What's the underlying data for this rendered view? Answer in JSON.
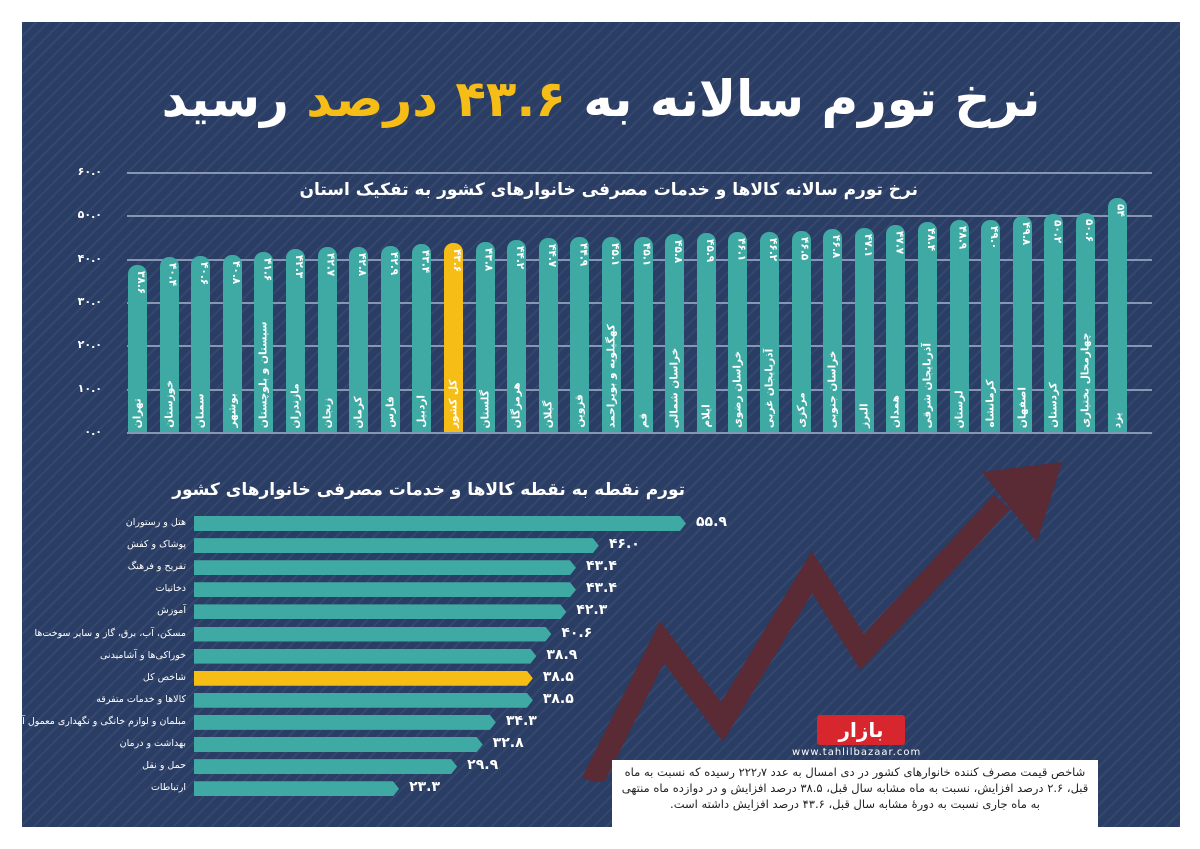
{
  "title": {
    "part1": "نرخ تورم سالانه به",
    "highlight": "۴۳.۶ درصد",
    "part2": "رسید"
  },
  "chart_data": [
    {
      "type": "bar",
      "title": "نرخ تورم سالانه کالاها و خدمات مصرفی خانوارهای کشور به تفکیک استان",
      "ylim": [
        0,
        60
      ],
      "yticks": [
        "۰.۰",
        "۱۰.۰",
        "۲۰.۰",
        "۳۰.۰",
        "۴۰.۰",
        "۵۰.۰",
        "۶۰.۰"
      ],
      "highlight": "کل کشور",
      "categories": [
        "تهران",
        "خوزستان",
        "سمنان",
        "بوشهر",
        "سیستان و بلوچستان",
        "مازندران",
        "زنجان",
        "کرمان",
        "فارس",
        "اردبیل",
        "کل کشور",
        "گلستان",
        "هرمزگان",
        "گیلان",
        "قزوین",
        "کهگیلویه و بویراحمد",
        "قم",
        "خراسان شمالی",
        "ایلام",
        "خراسان رضوی",
        "آذربایجان غربی",
        "مرکزی",
        "خراسان جنوبی",
        "البرز",
        "همدان",
        "آذربایجان شرقی",
        "لرستان",
        "کرمانشاه",
        "اصفهان",
        "کردستان",
        "چهارمحال بختیاری",
        "یزد"
      ],
      "values": [
        38.6,
        40.4,
        40.6,
        40.8,
        41.6,
        42.3,
        42.7,
        42.8,
        42.9,
        43.4,
        43.6,
        43.8,
        44.2,
        44.7,
        44.9,
        45.1,
        45.1,
        45.8,
        45.9,
        46.1,
        46.2,
        46.5,
        46.8,
        47.1,
        47.7,
        48.4,
        48.9,
        49.0,
        49.8,
        50.2,
        50.6,
        54
      ]
    },
    {
      "type": "bar",
      "orientation": "horizontal",
      "title": "تورم نقطه به نقطه کالاها و خدمات مصرفی خانوارهای کشور",
      "highlight": "شاخص کل",
      "categories": [
        "هتل و رستوران",
        "پوشاک و کفش",
        "تفریح و فرهنگ",
        "دخانیات",
        "آموزش",
        "مسکن، آب، برق، گاز و سایر سوخت‌ها",
        "خوراکی‌ها و آشامیدنی",
        "شاخص کل",
        "کالاها و خدمات متفرقه",
        "مبلمان و لوازم خانگی و نگهداری معمول آنها",
        "بهداشت و درمان",
        "حمل و نقل",
        "ارتباطات"
      ],
      "values": [
        55.9,
        46.0,
        43.4,
        43.4,
        42.3,
        40.6,
        38.9,
        38.5,
        38.5,
        34.3,
        32.8,
        29.9,
        23.3
      ]
    }
  ],
  "note": "شاخص قیمت مصرف کننده خانوارهای کشور در دی امسال به عدد ۲۲۲٫۷ رسیده که نسبت به ماه قبل، ۲.۶ درصد افزایش، نسبت به ماه مشابه سال قبل، ۳۸.۵ درصد افزایش و در دوازده ماه منتهی به ماه جاری نسبت به دورهٔ مشابه سال قبل، ۴۳.۶ درصد افزایش داشته است.",
  "logo": {
    "text": "بازار",
    "site": "www.tahlilbazaar.com"
  },
  "colors": {
    "bar": "#3fa9a4",
    "highlight": "#f7bd17",
    "background": "#2a3d64"
  }
}
